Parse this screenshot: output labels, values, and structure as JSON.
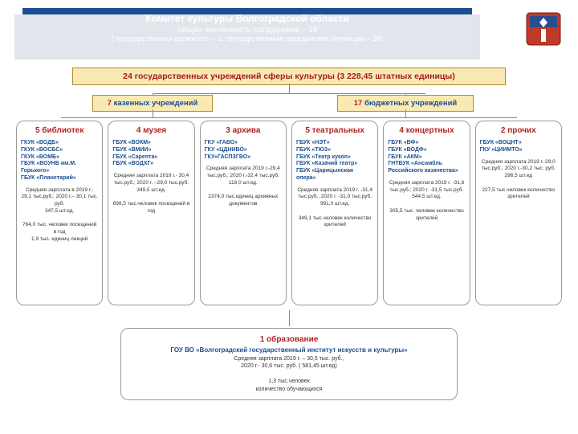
{
  "header": {
    "title": "Комитет культуры Волгоградской области",
    "sub1": "общая численность сотрудников – 39",
    "sub2": "( государственная должность – 1, государственные гражданские служащие – 38)"
  },
  "colors": {
    "banner_bg": "#1c4e91",
    "banner_shadow": "#e0e6ec",
    "badge_bg": "#f9e9b3",
    "badge_border": "#b08b2e",
    "accent_red": "#b22222",
    "accent_blue": "#1c4e91",
    "card_border": "#9a9a9a",
    "crest_red": "#c0392b",
    "crest_blue": "#2a4d8f"
  },
  "main_badge": "24 государственных учреждений сферы культуры (3 228,45 штатных единицы)",
  "sub_left": {
    "num": "7",
    "text": "казенных учреждений"
  },
  "sub_right": {
    "num": "17",
    "text": "бюджетных учреждений"
  },
  "cards": [
    {
      "title": "5 библиотек",
      "list": "ГКУК «ВОДБ»\nГКУК «ВОСБС»\nГКУК «ВОМБ»\nГБУК «ВОУНБ им.М. Горького»\nГБУК «Планетарий»",
      "body": "Средняя зарплата в 2019 г.- 29,1 тыс.руб.; 2020 г.– 30,1 тыс. руб.\n347,5 шт.ед.\n\n764,0 тыс. человек посещений в год\n1,9 тыс. единиц лекций"
    },
    {
      "title": "4 музея",
      "list": "ГБУК «ВОКМ»\nГБУК «ВМИИ»\nГБУК «Сарепта»\nГБУК «ВОДХГ»",
      "body": "Средняя зарплата 2019 г.- 30,4 тыс.руб.; 2020 г. –29,0 тыс.руб.\n349,5 шт.ед.\n\n698,5 тыс.человек посещений в год"
    },
    {
      "title": "3 архива",
      "list": "ГКУ «ГАВО»\nГКУ «ЦДНИВО»\nГКУ«ГАСПЗГВО»",
      "body": "Средняя зарплата 2019 г.-29,4 тыс.руб.; 2020 г.-32,4 тыс.руб.\n118,0 шт.ед.\n\n2374,0 тыс.единиц архивных документов"
    },
    {
      "title": "5 театральных",
      "list": "ГБУК «НЭТ»\nГБУК «ТЮЗ»\nГБУК «Театр кукол»\nГБУК «Казачий театр»\nГБУК «Царицынская опера»",
      "body": "Средняя зарплата 2019 г. -31,4 тыс.руб.; 2020 г. -31,0 тыс.руб.\n991,0 шт.ед.\n\n349,1 тыс.человек количество зрителей"
    },
    {
      "title": "4 концертных",
      "list": "ГБУК «ВФ»\nГБУК «ВОДФ»\nГБУК «АКМ»\nГНТБУК «Ансамбль Российского казачества»",
      "body": "Средняя зарплата 2019 г. -31,6 тыс.руб.; 2020 г. -31,5 тыс.руб.\n544,5 шт.ед.\n\n305,5 тыс. человек количество зрителей"
    },
    {
      "title": "2 прочих",
      "list": "ГБУК «ВОЦНТ»\nГКУ «ЦИИМТО»",
      "body": "Средняя зарплата 2019 г.-29,0 тыс.руб.; 2020 г.-30,2 тыс. руб.\n296,5 шт.ед\n\n227,5 тыс.человек количество зрителей"
    }
  ],
  "edu": {
    "title": "1 образование",
    "name": "ГОУ ВО «Волгоградский государственный институт искусств и культуры»",
    "body": "Средняя зарплата 2019 г. – 30,5 тыс. руб.,\n2020 г.- 30,6 тыс. руб. ( 581,45 шт.ед)\n\n1,3 тыс.человек\nколичество обучающихся"
  }
}
